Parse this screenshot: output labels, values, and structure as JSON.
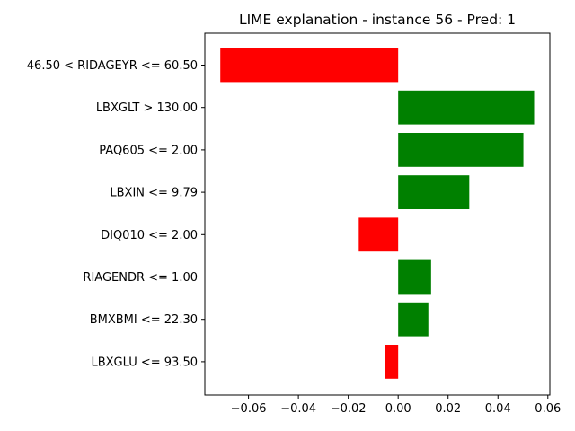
{
  "chart_data": {
    "type": "bar",
    "orientation": "horizontal",
    "title": "LIME explanation - instance 56 - Pred: 1",
    "xlabel": "",
    "ylabel": "",
    "categories": [
      "46.50 < RIDAGEYR <= 60.50",
      "LBXGLT > 130.00",
      "PAQ605 <= 2.00",
      "LBXIN <= 9.79",
      "DIQ010 <= 2.00",
      "RIAGENDR <= 1.00",
      "BMXBMI <= 22.30",
      "LBXGLU <= 93.50"
    ],
    "values": [
      -0.0713,
      0.0545,
      0.0502,
      0.0285,
      -0.0158,
      0.0132,
      0.0121,
      -0.0054
    ],
    "xlim": [
      -0.0775,
      0.0608
    ],
    "xticks": [
      -0.06,
      -0.04,
      -0.02,
      0.0,
      0.02,
      0.04,
      0.06
    ],
    "xtick_labels": [
      "−0.06",
      "−0.04",
      "−0.02",
      "0.00",
      "0.02",
      "0.04",
      "0.06"
    ],
    "colors": {
      "positive": "#008000",
      "negative": "#ff0000"
    },
    "grid": false,
    "legend": "none"
  }
}
